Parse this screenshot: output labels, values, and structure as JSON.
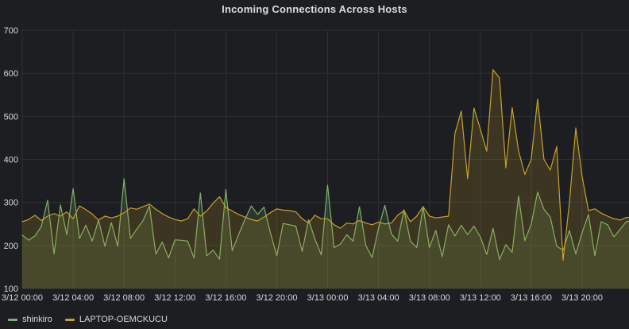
{
  "panel": {
    "title": "Incoming Connections Across Hosts"
  },
  "chart_data": {
    "type": "line",
    "title": "Incoming Connections Across Hosts",
    "xlabel": "",
    "ylabel": "",
    "ylim": [
      100,
      700
    ],
    "y_ticks": [
      700,
      600,
      500,
      400,
      300,
      200,
      100
    ],
    "grid": true,
    "legend_position": "bottom-left",
    "x_start_hour": 0,
    "x_step_hours": 0.5,
    "x_ticks": [
      {
        "hour": 0,
        "label": "3/12 00:00"
      },
      {
        "hour": 4,
        "label": "3/12 04:00"
      },
      {
        "hour": 8,
        "label": "3/12 08:00"
      },
      {
        "hour": 12,
        "label": "3/12 12:00"
      },
      {
        "hour": 16,
        "label": "3/12 16:00"
      },
      {
        "hour": 20,
        "label": "3/12 20:00"
      },
      {
        "hour": 24,
        "label": "3/13 00:00"
      },
      {
        "hour": 28,
        "label": "3/13 04:00"
      },
      {
        "hour": 32,
        "label": "3/13 08:00"
      },
      {
        "hour": 36,
        "label": "3/13 12:00"
      },
      {
        "hour": 40,
        "label": "3/13 16:00"
      },
      {
        "hour": 44,
        "label": "3/13 20:00"
      }
    ],
    "series": [
      {
        "name": "shinkiro",
        "color": "#7eb26d",
        "fill_opacity": 0.16,
        "values": [
          224,
          212,
          222,
          244,
          305,
          180,
          294,
          225,
          332,
          216,
          247,
          210,
          259,
          198,
          253,
          198,
          355,
          216,
          238,
          258,
          292,
          180,
          208,
          171,
          213,
          212,
          210,
          171,
          322,
          176,
          189,
          168,
          330,
          188,
          225,
          260,
          292,
          272,
          289,
          230,
          176,
          251,
          248,
          245,
          186,
          260,
          215,
          178,
          340,
          195,
          203,
          225,
          210,
          290,
          200,
          172,
          240,
          293,
          227,
          210,
          283,
          210,
          195,
          290,
          195,
          235,
          174,
          248,
          222,
          247,
          225,
          245,
          220,
          179,
          240,
          167,
          202,
          184,
          315,
          211,
          250,
          324,
          284,
          266,
          198,
          189,
          235,
          180,
          230,
          272,
          176,
          255,
          248,
          220,
          238,
          256
        ]
      },
      {
        "name": "LAPTOP-OEMCKUCU",
        "color": "#c9a226",
        "fill_opacity": 0.18,
        "values": [
          255,
          260,
          270,
          258,
          268,
          274,
          268,
          278,
          262,
          292,
          283,
          273,
          259,
          268,
          264,
          268,
          276,
          287,
          284,
          290,
          296,
          284,
          274,
          266,
          260,
          257,
          262,
          285,
          268,
          280,
          298,
          313,
          288,
          280,
          272,
          266,
          260,
          257,
          266,
          276,
          285,
          282,
          281,
          278,
          262,
          252,
          270,
          262,
          262,
          248,
          240,
          252,
          250,
          258,
          252,
          248,
          254,
          250,
          252,
          270,
          281,
          255,
          268,
          290,
          268,
          264,
          266,
          268,
          460,
          512,
          355,
          519,
          470,
          419,
          608,
          589,
          380,
          520,
          420,
          365,
          400,
          540,
          400,
          375,
          430,
          165,
          300,
          473,
          360,
          281,
          285,
          275,
          268,
          262,
          259,
          265
        ]
      }
    ],
    "theme": {
      "background": "#1d1e21",
      "grid_color": "#2f3034",
      "text_color": "#d8d9da",
      "title_color": "#dcdde0"
    }
  }
}
